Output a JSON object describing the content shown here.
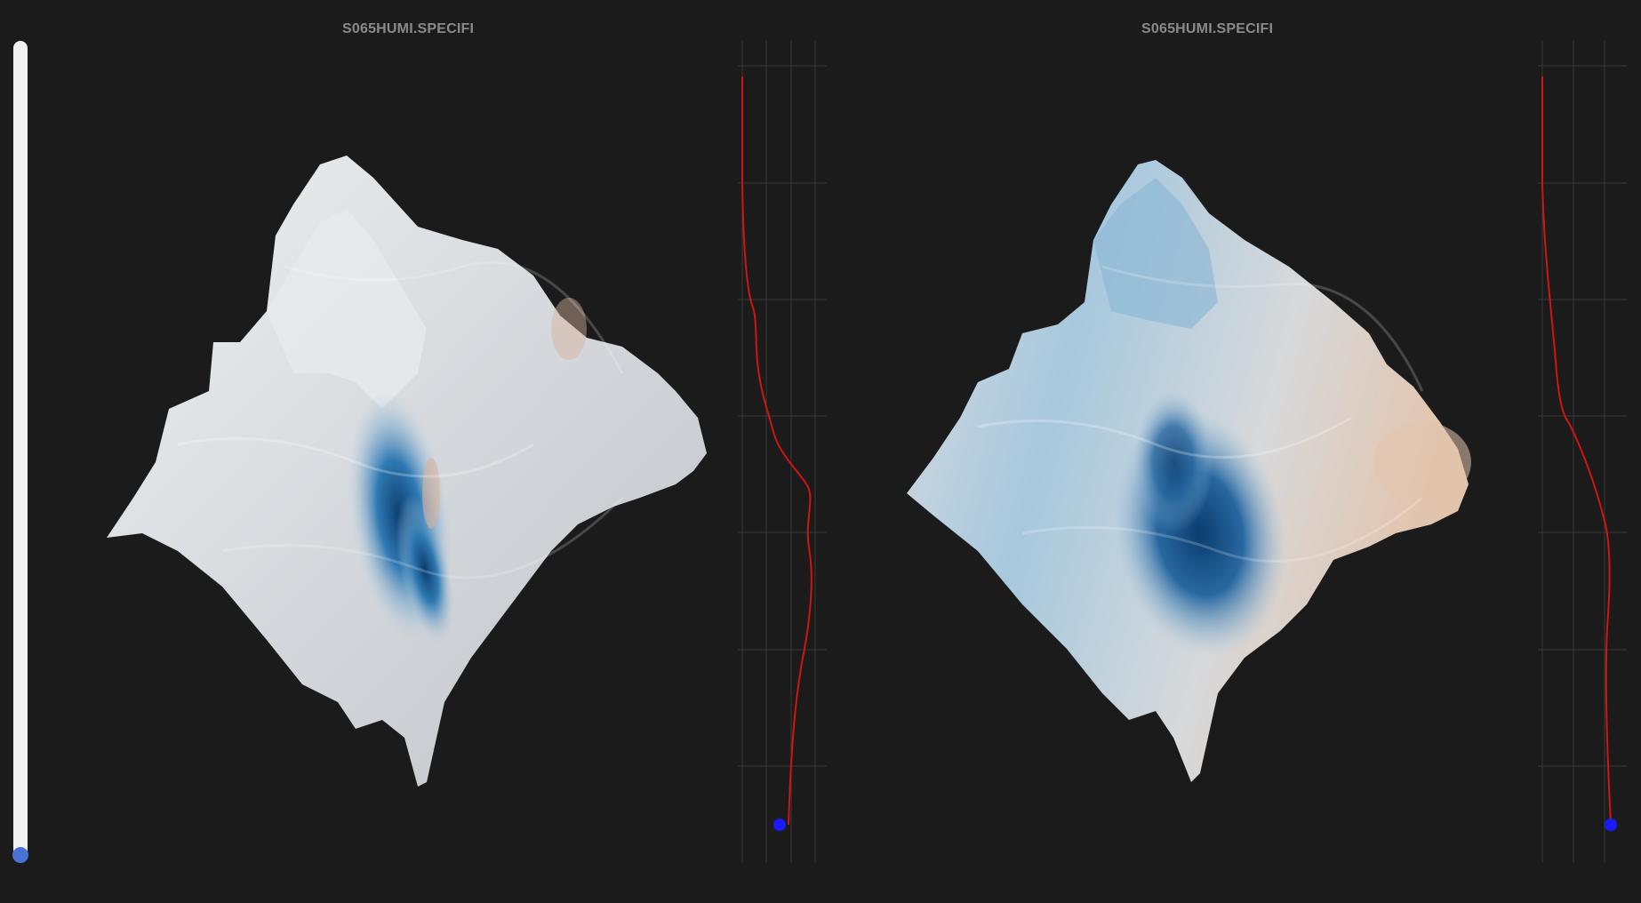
{
  "panels": [
    {
      "title": "S065HUMI.SPECIFI",
      "surface": "surface-plot-left",
      "profile": "vertical-profile-left"
    },
    {
      "title": "S065HUMI.SPECIFI",
      "surface": "surface-plot-right",
      "profile": "vertical-profile-right"
    }
  ],
  "level_slider": {
    "position": 0.0
  },
  "colors": {
    "background": "#1b1b1b",
    "title": "#8a8a8a",
    "profile_line": "#d11414",
    "profile_marker": "#1a1aff",
    "grid": "#3a3a3a",
    "slider_track": "#f1f1f1",
    "slider_thumb": "#4a72d6",
    "surface_light": "#dcdcdc",
    "surface_blue": "#2a6fa8",
    "surface_dark_blue": "#0b3d6e",
    "surface_orange": "#d9b39c"
  }
}
